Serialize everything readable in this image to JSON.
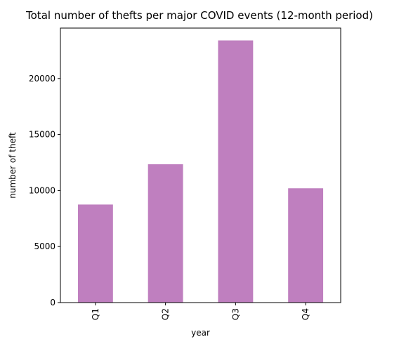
{
  "chart_data": {
    "type": "bar",
    "title": "Total number of thefts per major COVID events (12-month period)",
    "xlabel": "year",
    "ylabel": "number of theft",
    "categories": [
      "Q1",
      "Q2",
      "Q3",
      "Q4"
    ],
    "values": [
      8750,
      12350,
      23400,
      10200
    ],
    "ylim": [
      0,
      24500
    ],
    "yticks": [
      0,
      5000,
      10000,
      15000,
      20000
    ],
    "grid": false,
    "legend": "none",
    "bar_color": "#bf7fbf"
  }
}
